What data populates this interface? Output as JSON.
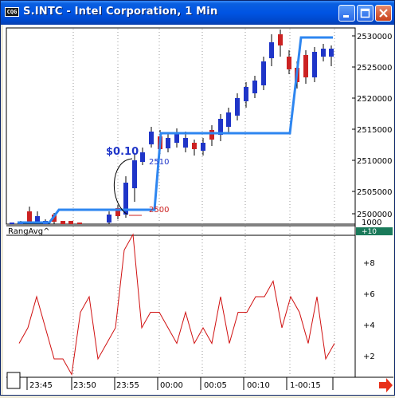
{
  "window": {
    "title": "S.INTC - Intel Corporation, 1 Min",
    "icon_label": "CQG",
    "buttons": {
      "minimize": "minimize-icon",
      "maximize": "maximize-icon",
      "close": "close-icon"
    }
  },
  "price_axis": {
    "labels": [
      "2530000",
      "2525000",
      "2520000",
      "2515000",
      "2510000",
      "2505000",
      "2500000"
    ],
    "corner": "1000"
  },
  "indicator": {
    "name": "RangAvg^",
    "badge": "+10",
    "axis_labels": [
      "+8",
      "+6",
      "+4",
      "+2"
    ],
    "values": [
      3,
      4,
      6,
      4,
      2,
      2,
      1,
      5,
      6,
      2,
      3,
      4,
      9,
      10,
      4,
      5,
      5,
      4,
      3,
      5,
      3,
      4,
      3,
      6,
      3,
      5,
      5,
      6,
      6,
      7,
      4,
      6,
      5,
      3,
      6,
      2,
      3
    ]
  },
  "time_axis": {
    "labels": [
      "23:45",
      "23:50",
      "23:55",
      "00:00",
      "00:05",
      "00:10",
      "1-00:15"
    ]
  },
  "annotations": {
    "range_label": "$0.10",
    "high_marker": "2510",
    "low_marker": "2500"
  },
  "nav_arrow_icon": "red-right-arrow-icon",
  "colors": {
    "up_candle": "#1f35c8",
    "down_candle": "#cc2222",
    "step_line": "#2e86f0",
    "indicator_line": "#d01010"
  }
}
